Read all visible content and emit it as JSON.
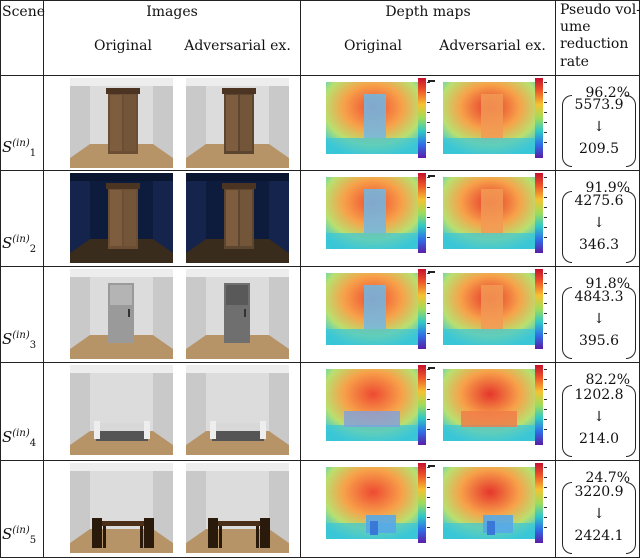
{
  "header": {
    "scene": "Scene",
    "images": "Images",
    "depth_maps": "Depth maps",
    "original": "Original",
    "adversarial": "Adversarial ex.",
    "pseudo_line1": "Pseudo vol-",
    "pseudo_line2": "ume",
    "pseudo_line3": "reduction",
    "pseudo_line4": "rate"
  },
  "rows": [
    {
      "scene_base": "S",
      "scene_sub": "1",
      "scene_sup": "(in)",
      "rate": "96.2%",
      "before": "5573.9",
      "arrow": "↓",
      "after": "209.5",
      "object": "wardrobe-light"
    },
    {
      "scene_base": "S",
      "scene_sub": "2",
      "scene_sup": "(in)",
      "rate": "91.9%",
      "before": "4275.6",
      "arrow": "↓",
      "after": "346.3",
      "object": "wardrobe-dark"
    },
    {
      "scene_base": "S",
      "scene_sub": "3",
      "scene_sup": "(in)",
      "rate": "91.8%",
      "before": "4843.3",
      "arrow": "↓",
      "after": "395.6",
      "object": "refrigerator"
    },
    {
      "scene_base": "S",
      "scene_sub": "4",
      "scene_sup": "(in)",
      "rate": "82.2%",
      "before": "1202.8",
      "arrow": "↓",
      "after": "214.0",
      "object": "sofa"
    },
    {
      "scene_base": "S",
      "scene_sub": "5",
      "scene_sup": "(in)",
      "rate": "24.7%",
      "before": "3220.9",
      "arrow": "↓",
      "after": "2424.1",
      "object": "dining-table"
    }
  ]
}
